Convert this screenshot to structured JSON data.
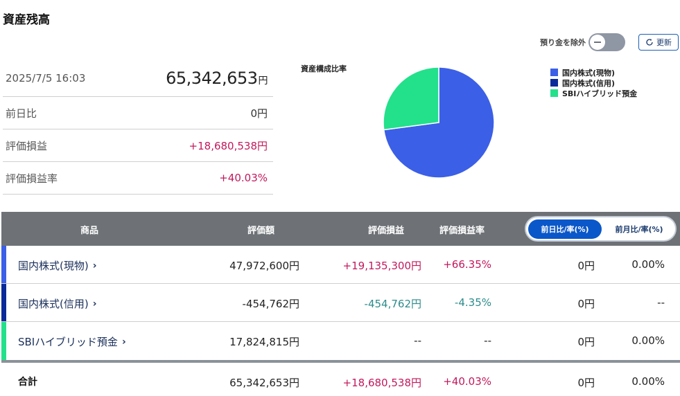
{
  "page_title": "資産残高",
  "summary": {
    "datetime": "2025/7/5 16:03",
    "total_value": "65,342,653",
    "total_unit": "円",
    "rows": [
      {
        "label": "前日比",
        "value": "0円"
      },
      {
        "label": "評価損益",
        "value": "+18,680,538円"
      },
      {
        "label": "評価損益率",
        "value": "+40.03%"
      }
    ]
  },
  "controls": {
    "exclude_deposit_label": "預り金を除外",
    "refresh_label": "更新"
  },
  "chart_data": {
    "type": "pie",
    "title": "資産構成比率",
    "legend_position": "right",
    "categories": [
      "国内株式(現物)",
      "国内株式(信用)",
      "SBIハイブリッド預金"
    ],
    "values": [
      47972600,
      0,
      17824815
    ],
    "colors": [
      "#3b5fe6",
      "#0a2a9a",
      "#23e08b"
    ]
  },
  "table": {
    "headers": {
      "product": "商品",
      "value": "評価額",
      "pl": "評価損益",
      "pl_rate": "評価損益率"
    },
    "segment": {
      "active": "前日比/率(%)",
      "inactive": "前月比/率(%)"
    },
    "rows": [
      {
        "name": "国内株式(現物)",
        "color": "#3b5fe6",
        "value": "47,972,600円",
        "pl": "+19,135,300円",
        "pl_rate": "+66.35%",
        "change": "0円",
        "change_rate": "0.00%"
      },
      {
        "name": "国内株式(信用)",
        "color": "#0a2a9a",
        "value": "-454,762円",
        "pl": "-454,762円",
        "pl_rate": "-4.35%",
        "change": "0円",
        "change_rate": "--"
      },
      {
        "name": "SBIハイブリッド預金",
        "color": "#23e08b",
        "value": "17,824,815円",
        "pl": "--",
        "pl_rate": "--",
        "change": "0円",
        "change_rate": "0.00%"
      }
    ],
    "total": {
      "label": "合計",
      "value": "65,342,653円",
      "pl": "+18,680,538円",
      "pl_rate": "+40.03%",
      "change": "0円",
      "change_rate": "0.00%"
    }
  }
}
